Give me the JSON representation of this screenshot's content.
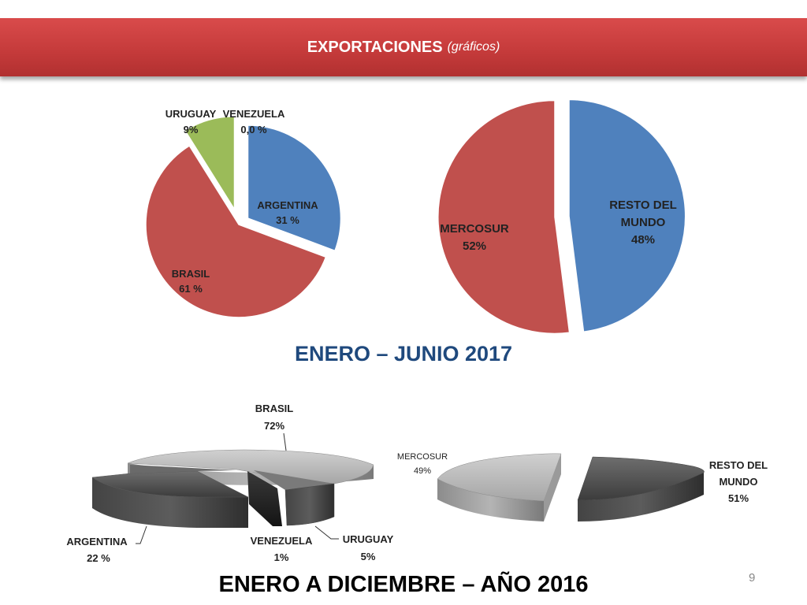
{
  "header": {
    "title": "EXPORTACIONES",
    "subtitle": "(gráficos)"
  },
  "caption_2017": "ENERO – JUNIO 2017",
  "caption_2016": "ENERO A DICIEMBRE – AÑO 2016",
  "page_number": "9",
  "chart_data": [
    {
      "type": "pie",
      "period": "ENERO – JUNIO 2017",
      "slices": [
        {
          "name": "ARGENTINA",
          "value_label": "31 %",
          "value": 31,
          "color": "#4f81bd"
        },
        {
          "name": "BRASIL",
          "value_label": "61 %",
          "value": 61,
          "color": "#c0504d"
        },
        {
          "name": "URUGUAY",
          "value_label": "9%",
          "value": 9,
          "color": "#9bbb59"
        },
        {
          "name": "VENEZUELA",
          "value_label": "0,0 %",
          "value": 0,
          "color": "#8064a2"
        }
      ]
    },
    {
      "type": "pie",
      "period": "ENERO – JUNIO 2017",
      "slices": [
        {
          "name": "RESTO DEL MUNDO",
          "value_label": "48%",
          "value": 48,
          "color": "#4f81bd"
        },
        {
          "name": "MERCOSUR",
          "value_label": "52%",
          "value": 52,
          "color": "#c0504d"
        }
      ]
    },
    {
      "type": "pie",
      "period": "ENERO A DICIEMBRE – AÑO 2016",
      "style": "3d-grayscale",
      "slices": [
        {
          "name": "BRASIL",
          "value_label": "72%",
          "value": 72
        },
        {
          "name": "ARGENTINA",
          "value_label": "22 %",
          "value": 22
        },
        {
          "name": "VENEZUELA",
          "value_label": "1%",
          "value": 1
        },
        {
          "name": "URUGUAY",
          "value_label": "5%",
          "value": 5
        }
      ]
    },
    {
      "type": "pie",
      "period": "ENERO A DICIEMBRE – AÑO 2016",
      "style": "3d-grayscale",
      "slices": [
        {
          "name": "MERCOSUR",
          "value_label": "49%",
          "value": 49
        },
        {
          "name": "RESTO DEL MUNDO",
          "value_label": "51%",
          "value": 51
        }
      ]
    }
  ]
}
